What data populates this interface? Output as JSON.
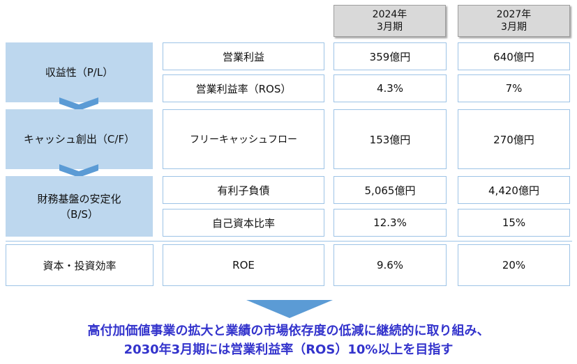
{
  "columns": [
    {
      "line1": "2024年",
      "line2": "3月期"
    },
    {
      "line1": "2027年",
      "line2": "3月期"
    }
  ],
  "categories": {
    "pl": "収益性（P/L）",
    "cf": "キャッシュ創出（C/F）",
    "bs_line1": "財務基盤の安定化",
    "bs_line2": "（B/S）",
    "roe": "資本・投資効率"
  },
  "rows": [
    {
      "label": "営業利益",
      "v2024": "359億円",
      "v2027": "640億円"
    },
    {
      "label": "営業利益率（ROS）",
      "v2024": "4.3%",
      "v2027": "7%"
    },
    {
      "label": "フリーキャッシュフロー",
      "v2024": "153億円",
      "v2027": "270億円"
    },
    {
      "label": "有利子負債",
      "v2024": "5,065億円",
      "v2027": "4,420億円"
    },
    {
      "label": "自己資本比率",
      "v2024": "12.3%",
      "v2027": "15%"
    },
    {
      "label": "ROE",
      "v2024": "9.6%",
      "v2027": "20%"
    }
  ],
  "message": {
    "line1": "高付加価値事業の拡大と業績の市場依存度の低減に継続的に取り組み、",
    "line2": "2030年3月期には営業利益率（ROS）10%以上を目指す"
  },
  "colors": {
    "category_fill": "#bdd7ee",
    "arrow_fill": "#5b9bd5",
    "message_text": "#3333cc",
    "header_fill": "#d9d9d9"
  }
}
